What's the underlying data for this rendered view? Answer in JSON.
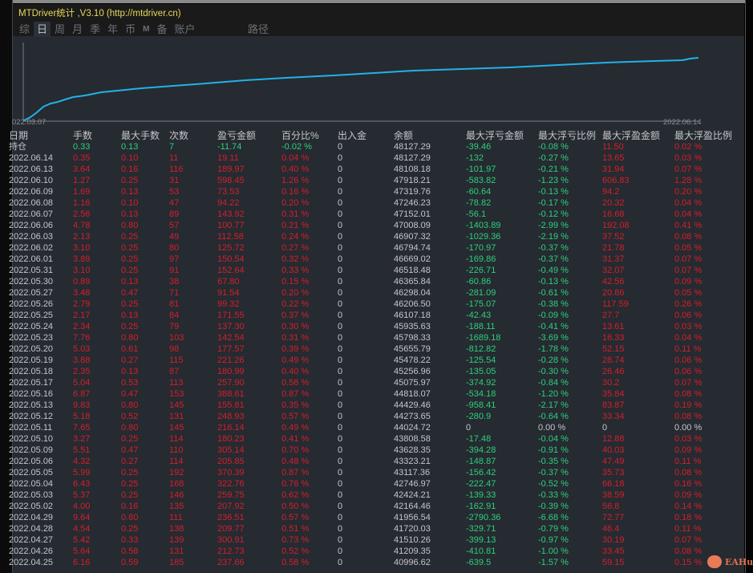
{
  "window": {
    "title": "MTDriver统计 ,V3.10 (http://mtdriver.cn)"
  },
  "tabs": [
    {
      "label": "综",
      "active": false
    },
    {
      "label": "日",
      "active": true
    },
    {
      "label": "周"
    },
    {
      "label": "月"
    },
    {
      "label": "季"
    },
    {
      "label": "年"
    },
    {
      "label": "币"
    },
    {
      "label": "M",
      "small": true
    },
    {
      "label": "备"
    },
    {
      "label": "账户"
    }
  ],
  "path_label": "路径",
  "chart": {
    "start_label": "022.03.07",
    "end_label": "2022.06.14",
    "line_color": "#1fb3e8"
  },
  "colors": {
    "loss": "#d2202b",
    "gain": "#2bd17a",
    "neutral": "#c3c7cc",
    "title": "#e8d85a"
  },
  "table": {
    "headers": [
      "日期",
      "手数",
      "最大手数",
      "次数",
      "盈亏金额",
      "百分比%",
      "出入金",
      "余额",
      "最大浮亏金额",
      "最大浮亏比例",
      "最大浮盈金额",
      "最大浮盈比例"
    ],
    "holding": [
      "持仓",
      "0.33",
      "0.13",
      "7",
      "-11.74",
      "-0.02 %",
      "0",
      "48127.29",
      "-39.46",
      "-0.08 %",
      "11.50",
      "0.02 %"
    ],
    "rows": [
      [
        "2022.06.14",
        "0.35",
        "0.10",
        "11",
        "19.11",
        "0.04 %",
        "0",
        "48127.29",
        "-132",
        "-0.27 %",
        "13.65",
        "0.03 %"
      ],
      [
        "2022.06.13",
        "3.64",
        "0.16",
        "116",
        "189.97",
        "0.40 %",
        "0",
        "48108.18",
        "-101.97",
        "-0.21 %",
        "31.94",
        "0.07 %"
      ],
      [
        "2022.06.10",
        "1.27",
        "0.25",
        "31",
        "598.45",
        "1.26 %",
        "0",
        "47918.21",
        "-583.82",
        "-1.23 %",
        "606.83",
        "1.28 %"
      ],
      [
        "2022.06.09",
        "1.69",
        "0.13",
        "53",
        "73.53",
        "0.16 %",
        "0",
        "47319.76",
        "-60.64",
        "-0.13 %",
        "94.2",
        "0.20 %"
      ],
      [
        "2022.06.08",
        "1.16",
        "0.10",
        "47",
        "94.22",
        "0.20 %",
        "0",
        "47246.23",
        "-78.82",
        "-0.17 %",
        "20.32",
        "0.04 %"
      ],
      [
        "2022.06.07",
        "2.56",
        "0.13",
        "89",
        "143.92",
        "0.31 %",
        "0",
        "47152.01",
        "-56.1",
        "-0.12 %",
        "16.68",
        "0.04 %"
      ],
      [
        "2022.06.06",
        "4.78",
        "0.80",
        "57",
        "100.77",
        "0.21 %",
        "0",
        "47008.09",
        "-1403.89",
        "-2.99 %",
        "192.08",
        "0.41 %"
      ],
      [
        "2022.06.03",
        "2.13",
        "0.25",
        "49",
        "112.58",
        "0.24 %",
        "0",
        "46907.32",
        "-1029.36",
        "-2.19 %",
        "37.52",
        "0.08 %"
      ],
      [
        "2022.06.02",
        "3.10",
        "0.25",
        "80",
        "125.72",
        "0.27 %",
        "0",
        "46794.74",
        "-170.97",
        "-0.37 %",
        "21.78",
        "0.05 %"
      ],
      [
        "2022.06.01",
        "3.89",
        "0.25",
        "97",
        "150.54",
        "0.32 %",
        "0",
        "46669.02",
        "-169.86",
        "-0.37 %",
        "31.37",
        "0.07 %"
      ],
      [
        "2022.05.31",
        "3.10",
        "0.25",
        "91",
        "152.64",
        "0.33 %",
        "0",
        "46518.48",
        "-226.71",
        "-0.49 %",
        "32.07",
        "0.07 %"
      ],
      [
        "2022.05.30",
        "0.89",
        "0.13",
        "38",
        "67.80",
        "0.15 %",
        "0",
        "46365.84",
        "-60.86",
        "-0.13 %",
        "42.56",
        "0.09 %"
      ],
      [
        "2022.05.27",
        "3.48",
        "0.47",
        "71",
        "91.54",
        "0.20 %",
        "0",
        "46298.04",
        "-281.09",
        "-0.61 %",
        "20.86",
        "0.05 %"
      ],
      [
        "2022.05.26",
        "2.79",
        "0.25",
        "81",
        "99.32",
        "0.22 %",
        "0",
        "46206.50",
        "-175.07",
        "-0.38 %",
        "117.59",
        "0.26 %"
      ],
      [
        "2022.05.25",
        "2.17",
        "0.13",
        "84",
        "171.55",
        "0.37 %",
        "0",
        "46107.18",
        "-42.43",
        "-0.09 %",
        "27.7",
        "0.06 %"
      ],
      [
        "2022.05.24",
        "2.34",
        "0.25",
        "79",
        "137.30",
        "0.30 %",
        "0",
        "45935.63",
        "-188.11",
        "-0.41 %",
        "13.61",
        "0.03 %"
      ],
      [
        "2022.05.23",
        "7.76",
        "0.80",
        "103",
        "142.54",
        "0.31 %",
        "0",
        "45798.33",
        "-1689.18",
        "-3.69 %",
        "16.33",
        "0.04 %"
      ],
      [
        "2022.05.20",
        "5.03",
        "0.61",
        "98",
        "177.57",
        "0.39 %",
        "0",
        "45655.79",
        "-812.82",
        "-1.78 %",
        "52.15",
        "0.11 %"
      ],
      [
        "2022.05.19",
        "3.88",
        "0.27",
        "115",
        "221.26",
        "0.49 %",
        "0",
        "45478.22",
        "-125.54",
        "-0.28 %",
        "28.74",
        "0.06 %"
      ],
      [
        "2022.05.18",
        "2.35",
        "0.13",
        "87",
        "180.99",
        "0.40 %",
        "0",
        "45256.96",
        "-135.05",
        "-0.30 %",
        "26.46",
        "0.06 %"
      ],
      [
        "2022.05.17",
        "5.04",
        "0.53",
        "113",
        "257.90",
        "0.58 %",
        "0",
        "45075.97",
        "-374.92",
        "-0.84 %",
        "30.2",
        "0.07 %"
      ],
      [
        "2022.05.16",
        "6.87",
        "0.47",
        "153",
        "388.61",
        "0.87 %",
        "0",
        "44818.07",
        "-534.18",
        "-1.20 %",
        "35.84",
        "0.08 %"
      ],
      [
        "2022.05.13",
        "9.83",
        "0.80",
        "145",
        "155.81",
        "0.35 %",
        "0",
        "44429.46",
        "-958.41",
        "-2.17 %",
        "83.87",
        "0.19 %"
      ],
      [
        "2022.05.12",
        "5.18",
        "0.52",
        "131",
        "248.93",
        "0.57 %",
        "0",
        "44273.65",
        "-280.9",
        "-0.64 %",
        "33.34",
        "0.08 %"
      ],
      [
        "2022.05.11",
        "7.65",
        "0.80",
        "145",
        "216.14",
        "0.49 %",
        "0",
        "44024.72",
        "0",
        "0.00 %",
        "0",
        "0.00 %"
      ],
      [
        "2022.05.10",
        "3.27",
        "0.25",
        "114",
        "180.23",
        "0.41 %",
        "0",
        "43808.58",
        "-17.48",
        "-0.04 %",
        "12.88",
        "0.03 %"
      ],
      [
        "2022.05.09",
        "5.51",
        "0.47",
        "110",
        "305.14",
        "0.70 %",
        "0",
        "43628.35",
        "-394.28",
        "-0.91 %",
        "40.03",
        "0.09 %"
      ],
      [
        "2022.05.06",
        "4.32",
        "0.27",
        "114",
        "205.85",
        "0.48 %",
        "0",
        "43323.21",
        "-148.87",
        "-0.35 %",
        "47.49",
        "0.11 %"
      ],
      [
        "2022.05.05",
        "5.99",
        "0.25",
        "192",
        "370.39",
        "0.87 %",
        "0",
        "43117.36",
        "-156.42",
        "-0.37 %",
        "35.73",
        "0.08 %"
      ],
      [
        "2022.05.04",
        "6.43",
        "0.25",
        "168",
        "322.76",
        "0.76 %",
        "0",
        "42746.97",
        "-222.47",
        "-0.52 %",
        "66.18",
        "0.16 %"
      ],
      [
        "2022.05.03",
        "5.37",
        "0.25",
        "146",
        "259.75",
        "0.62 %",
        "0",
        "42424.21",
        "-139.33",
        "-0.33 %",
        "38.59",
        "0.09 %"
      ],
      [
        "2022.05.02",
        "4.00",
        "0.16",
        "135",
        "207.92",
        "0.50 %",
        "0",
        "42164.46",
        "-162.91",
        "-0.39 %",
        "56.8",
        "0.14 %"
      ],
      [
        "2022.04.29",
        "9.64",
        "0.80",
        "111",
        "236.51",
        "0.57 %",
        "0",
        "41956.54",
        "-2790.36",
        "-6.68 %",
        "72.77",
        "0.18 %"
      ],
      [
        "2022.04.28",
        "4.54",
        "0.25",
        "138",
        "209.77",
        "0.51 %",
        "0",
        "41720.03",
        "-329.71",
        "-0.79 %",
        "46.4",
        "0.11 %"
      ],
      [
        "2022.04.27",
        "5.42",
        "0.33",
        "139",
        "300.91",
        "0.73 %",
        "0",
        "41510.26",
        "-399.13",
        "-0.97 %",
        "30.19",
        "0.07 %"
      ],
      [
        "2022.04.26",
        "5.64",
        "0.58",
        "131",
        "212.73",
        "0.52 %",
        "0",
        "41209.35",
        "-410.81",
        "-1.00 %",
        "33.45",
        "0.08 %"
      ],
      [
        "2022.04.25",
        "6.16",
        "0.59",
        "185",
        "237.66",
        "0.58 %",
        "0",
        "40996.62",
        "-639.5",
        "-1.57 %",
        "59.15",
        "0.15 %"
      ]
    ]
  },
  "watermark": {
    "text": "EAHub",
    "icon": "pig-icon"
  }
}
